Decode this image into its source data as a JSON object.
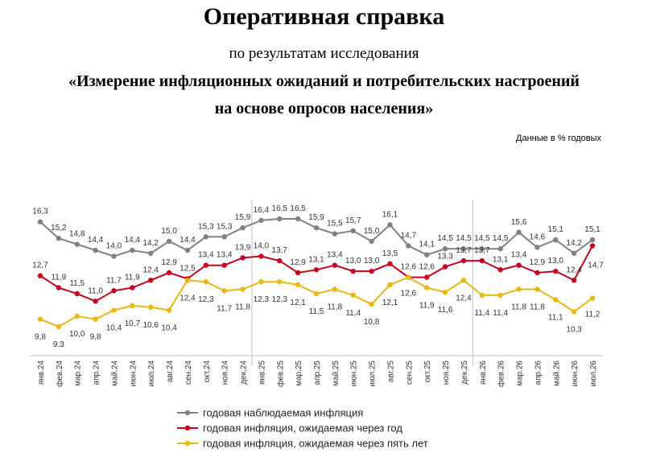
{
  "header": {
    "title": "Оперативная справка",
    "subtitle": "по результатам исследования",
    "subtitle2_line1": "«Измерение инфляционных ожиданий и потребительских настроений",
    "subtitle2_line2": "на основе опросов населения»",
    "units": "Данные в % годовых"
  },
  "colors": {
    "observed": "#808080",
    "expected_1y": "#c8001e",
    "expected_5y": "#e8b810"
  },
  "chart_data": {
    "type": "line",
    "categories": [
      "янв.24",
      "фев.24",
      "мар.24",
      "апр.24",
      "май.24",
      "июн.24",
      "июл.24",
      "авг.24",
      "сен.24",
      "окт.24",
      "ноя.24",
      "дек.24",
      "янв.25",
      "фев.25",
      "мар.25",
      "апр.25",
      "май.25",
      "июн.25",
      "июл.25",
      "авг.25",
      "сен.25",
      "окт.25",
      "ноя.25",
      "дек.25",
      "янв.26",
      "фев.26",
      "мар.26",
      "апр.26",
      "май.26",
      "июн.26",
      "июл.26"
    ],
    "series": [
      {
        "name": "годовая наблюдаемая инфляция",
        "values": [
          16.3,
          15.2,
          14.8,
          14.4,
          14.0,
          14.4,
          14.2,
          15.0,
          14.4,
          15.3,
          15.3,
          15.9,
          16.4,
          16.5,
          16.5,
          15.9,
          15.5,
          15.7,
          15.0,
          16.1,
          14.7,
          14.1,
          14.5,
          14.5,
          14.5,
          14.5,
          15.6,
          14.6,
          15.1,
          14.2,
          15.1
        ]
      },
      {
        "name": "годовая инфляция,  ожидаемая  через год",
        "values": [
          12.7,
          11.9,
          11.5,
          11.0,
          11.7,
          11.9,
          12.4,
          12.9,
          12.5,
          13.4,
          13.4,
          13.9,
          14.0,
          13.7,
          12.9,
          13.1,
          13.4,
          13.0,
          13.0,
          13.5,
          12.6,
          12.6,
          13.3,
          13.7,
          13.7,
          13.1,
          13.4,
          12.9,
          13.0,
          12.4,
          14.7
        ]
      },
      {
        "name": "годовая инфляция,  ожидаемая  через пять лет",
        "values": [
          9.8,
          9.3,
          10.0,
          9.8,
          10.4,
          10.7,
          10.6,
          10.4,
          12.4,
          12.3,
          11.7,
          11.8,
          12.3,
          12.3,
          12.1,
          11.5,
          11.8,
          11.4,
          10.8,
          12.1,
          12.6,
          11.9,
          11.6,
          12.4,
          11.4,
          11.4,
          11.8,
          11.8,
          11.1,
          10.3,
          11.2
        ]
      }
    ],
    "separators_after": [
      "дек.24",
      "дек.25"
    ],
    "grid": false,
    "legend_position": "bottom"
  }
}
